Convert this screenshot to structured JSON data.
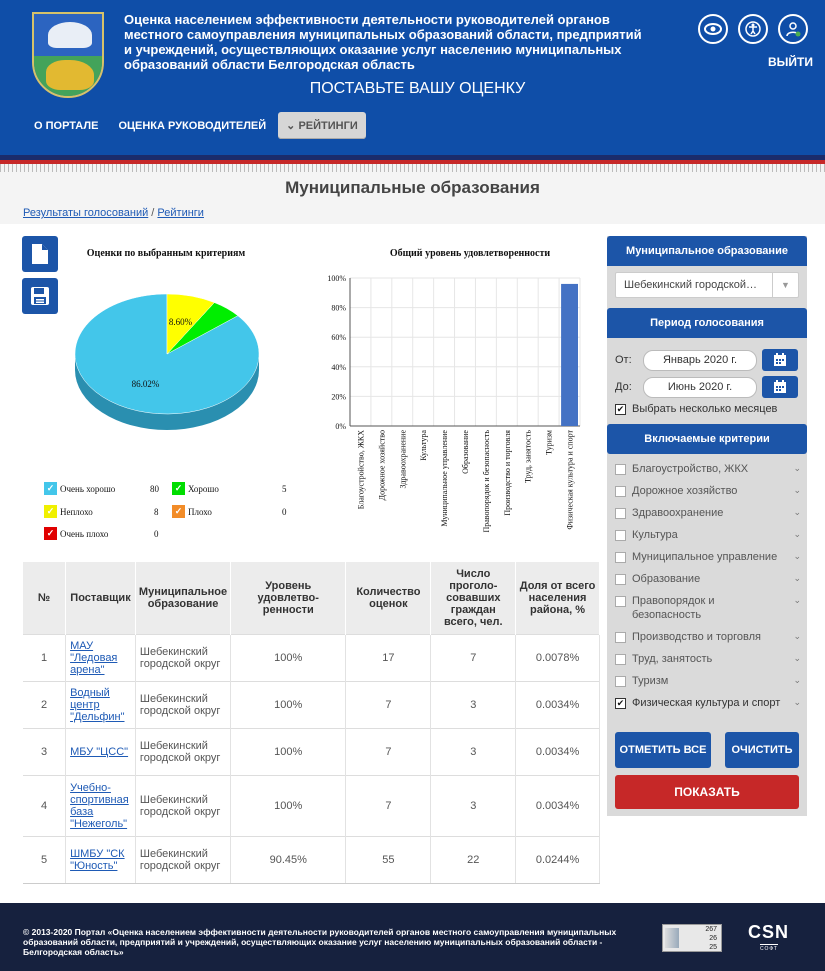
{
  "header": {
    "site_title": "Оценка населением эффективности деятельности руководителей органов местного самоуправления муниципальных образований области, предприятий и учреждений, осуществляющих оказание услуг населению муниципальных образований области Белгородская область",
    "exit_label": "ВЫЙТИ",
    "vote_call": "ПОСТАВЬТЕ ВАШУ ОЦЕНКУ",
    "icons": [
      "eye-icon",
      "accessibility-icon",
      "user-icon"
    ]
  },
  "nav": {
    "items": [
      {
        "label": "О ПОРТАЛЕ"
      },
      {
        "label": "ОЦЕНКА РУКОВОДИТЕЛЕЙ"
      },
      {
        "label": "РЕЙТИНГИ",
        "active": true
      }
    ],
    "active_prefix": "⌄"
  },
  "page": {
    "title": "Муниципальные образования",
    "breadcrumb": {
      "first": "Результаты голосований",
      "separator": " / ",
      "second": "Рейтинги"
    }
  },
  "charts": {
    "pie_title": "Оценки по выбранным критериям",
    "bar_title": "Общий уровень удовлетворенности"
  },
  "chart_data": [
    {
      "type": "pie",
      "title": "Оценки по выбранным критериям",
      "slices": [
        {
          "name": "Очень хорошо",
          "value": 80,
          "percent_label": "86.02%",
          "color": "#43c6ea"
        },
        {
          "name": "Хорошо",
          "value": 5,
          "percent_label": "",
          "color": "#00ee00"
        },
        {
          "name": "Неплохо",
          "value": 8,
          "percent_label": "8.60%",
          "color": "#ffff00"
        },
        {
          "name": "Плохо",
          "value": 0,
          "percent_label": "",
          "color": "#f28c28"
        },
        {
          "name": "Очень плохо",
          "value": 0,
          "percent_label": "",
          "color": "#ee0000"
        }
      ]
    },
    {
      "type": "bar",
      "title": "Общий уровень удовлетворенности",
      "categories": [
        "Благоустройство, ЖКХ",
        "Дорожное хозяйство",
        "Здравоохранение",
        "Культура",
        "Муниципальное управление",
        "Образование",
        "Правопорядок и безопасность",
        "Производство и торговля",
        "Труд, занятость",
        "Туризм",
        "Физическая культура и спорт"
      ],
      "values": [
        0,
        0,
        0,
        0,
        0,
        0,
        0,
        0,
        0,
        0,
        96
      ],
      "ylim": [
        0,
        100
      ],
      "yticks": [
        "0%",
        "20%",
        "40%",
        "60%",
        "80%",
        "100%"
      ],
      "bar_color": "#4472c4",
      "grid": true
    }
  ],
  "table": {
    "headers": [
      "№",
      "Поставщик",
      "Муниципальное образование",
      "Уровень удовлетво-ренности",
      "Количество оценок",
      "Число проголо-совавших граждан всего, чел.",
      "Доля от всего населения района, %"
    ],
    "rows": [
      {
        "n": "1",
        "provider": "МАУ \"Ледовая арена\"",
        "municipality": "Шебекинский городской округ",
        "satisfaction": "100%",
        "ratings": "17",
        "voters": "7",
        "share": "0.0078%"
      },
      {
        "n": "2",
        "provider": "Водный центр \"Дельфин\"",
        "municipality": "Шебекинский городской округ",
        "satisfaction": "100%",
        "ratings": "7",
        "voters": "3",
        "share": "0.0034%"
      },
      {
        "n": "3",
        "provider": "МБУ \"ЦСС\"",
        "municipality": "Шебекинский городской округ",
        "satisfaction": "100%",
        "ratings": "7",
        "voters": "3",
        "share": "0.0034%"
      },
      {
        "n": "4",
        "provider": "Учебно-спортивная база \"Нежеголь\"",
        "municipality": "Шебекинский городской округ",
        "satisfaction": "100%",
        "ratings": "7",
        "voters": "3",
        "share": "0.0034%"
      },
      {
        "n": "5",
        "provider": "ШМБУ \"СК \"Юность\"",
        "municipality": "Шебекинский городской округ",
        "satisfaction": "90.45%",
        "ratings": "55",
        "voters": "22",
        "share": "0.0244%"
      }
    ]
  },
  "sidebar": {
    "municipality_header": "Муниципальное образование",
    "municipality_value": "Шебекинский городской…",
    "period_header": "Период голосования",
    "from_label": "От:",
    "from_value": "Январь 2020 г.",
    "to_label": "До:",
    "to_value": "Июнь 2020 г.",
    "multi_month_label": "Выбрать несколько месяцев",
    "multi_month_checked": true,
    "criteria_header": "Включаемые критерии",
    "criteria": [
      {
        "label": "Благоустройство, ЖКХ",
        "checked": false
      },
      {
        "label": "Дорожное хозяйство",
        "checked": false
      },
      {
        "label": "Здравоохранение",
        "checked": false
      },
      {
        "label": "Культура",
        "checked": false
      },
      {
        "label": "Муниципальное управление",
        "checked": false
      },
      {
        "label": "Образование",
        "checked": false
      },
      {
        "label": "Правопорядок и безопасность",
        "checked": false
      },
      {
        "label": "Производство и торговля",
        "checked": false
      },
      {
        "label": "Труд, занятость",
        "checked": false
      },
      {
        "label": "Туризм",
        "checked": false
      },
      {
        "label": "Физическая культура и спорт",
        "checked": true
      }
    ],
    "select_all_label": "ОТМЕТИТЬ ВСЕ",
    "clear_label": "ОЧИСТИТЬ",
    "show_label": "ПОКАЗАТЬ"
  },
  "footer": {
    "copyright": "© 2013-2020 Портал «Оценка населением эффективности деятельности руководителей органов местного самоуправления муниципальных образований области, предприятий и учреждений, осуществляющих оказание услуг населению муниципальных образований области - Белгородская область»",
    "counter": [
      "267",
      "26",
      "25"
    ],
    "brand": "CSN",
    "brand_sub": "СОФТ"
  }
}
